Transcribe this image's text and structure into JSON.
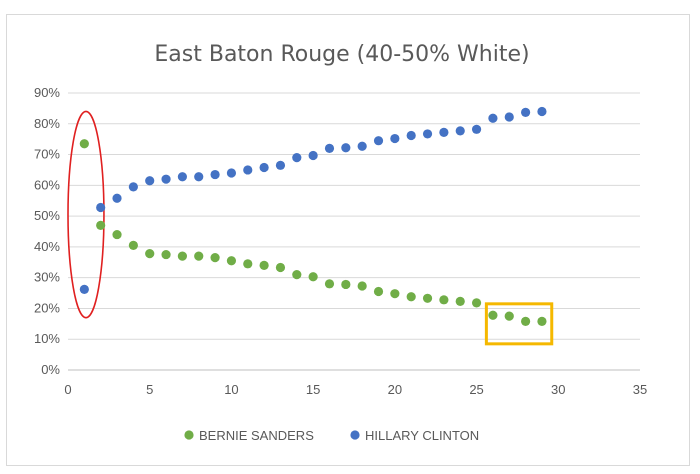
{
  "chart_data": {
    "type": "scatter",
    "title": "East Baton Rouge (40-50% White)",
    "xlabel": "",
    "ylabel": "",
    "xlim": [
      0,
      35
    ],
    "ylim": [
      0,
      0.9
    ],
    "x_ticks": [
      "0",
      "5",
      "10",
      "15",
      "20",
      "25",
      "30",
      "35"
    ],
    "y_ticks": [
      "0%",
      "10%",
      "20%",
      "30%",
      "40%",
      "50%",
      "60%",
      "70%",
      "80%",
      "90%"
    ],
    "grid": "horizontal",
    "legend_position": "bottom",
    "series": [
      {
        "name": "BERNIE SANDERS",
        "color": "#70ad47",
        "points": [
          [
            1,
            0.735
          ],
          [
            2,
            0.47
          ],
          [
            3,
            0.44
          ],
          [
            4,
            0.405
          ],
          [
            5,
            0.378
          ],
          [
            6,
            0.375
          ],
          [
            7,
            0.37
          ],
          [
            8,
            0.37
          ],
          [
            9,
            0.365
          ],
          [
            10,
            0.355
          ],
          [
            11,
            0.345
          ],
          [
            12,
            0.34
          ],
          [
            13,
            0.333
          ],
          [
            14,
            0.31
          ],
          [
            15,
            0.303
          ],
          [
            16,
            0.28
          ],
          [
            17,
            0.278
          ],
          [
            18,
            0.273
          ],
          [
            19,
            0.255
          ],
          [
            20,
            0.248
          ],
          [
            21,
            0.238
          ],
          [
            22,
            0.233
          ],
          [
            23,
            0.228
          ],
          [
            24,
            0.223
          ],
          [
            25,
            0.218
          ],
          [
            26,
            0.178
          ],
          [
            27,
            0.175
          ],
          [
            28,
            0.158
          ],
          [
            29,
            0.158
          ]
        ]
      },
      {
        "name": "HILLARY CLINTON",
        "color": "#4472c4",
        "points": [
          [
            1,
            0.262
          ],
          [
            2,
            0.528
          ],
          [
            3,
            0.558
          ],
          [
            4,
            0.595
          ],
          [
            5,
            0.615
          ],
          [
            6,
            0.62
          ],
          [
            7,
            0.628
          ],
          [
            8,
            0.628
          ],
          [
            9,
            0.635
          ],
          [
            10,
            0.64
          ],
          [
            11,
            0.65
          ],
          [
            12,
            0.658
          ],
          [
            13,
            0.665
          ],
          [
            14,
            0.69
          ],
          [
            15,
            0.697
          ],
          [
            16,
            0.72
          ],
          [
            17,
            0.722
          ],
          [
            18,
            0.727
          ],
          [
            19,
            0.745
          ],
          [
            20,
            0.752
          ],
          [
            21,
            0.762
          ],
          [
            22,
            0.767
          ],
          [
            23,
            0.772
          ],
          [
            24,
            0.777
          ],
          [
            25,
            0.782
          ],
          [
            26,
            0.818
          ],
          [
            27,
            0.822
          ],
          [
            28,
            0.837
          ],
          [
            29,
            0.84
          ]
        ]
      }
    ],
    "annotations": [
      {
        "shape": "ellipse",
        "color": "#e02020",
        "x_range": [
          0,
          2.2
        ],
        "y_range": [
          0.17,
          0.84
        ]
      },
      {
        "shape": "rectangle",
        "color": "#f5b800",
        "x_range": [
          25.6,
          29.6
        ],
        "y_range": [
          0.085,
          0.215
        ]
      }
    ]
  }
}
